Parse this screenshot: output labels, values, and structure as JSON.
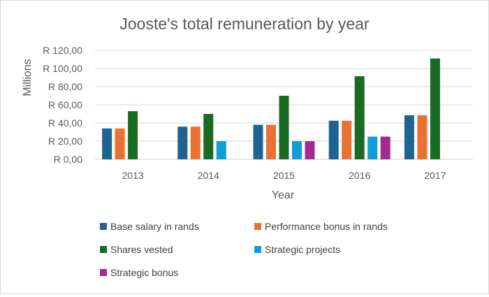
{
  "chart_data": {
    "type": "bar",
    "title": "Jooste's total remuneration by year",
    "xlabel": "Year",
    "ylabel": "Millions",
    "categories": [
      "2013",
      "2014",
      "2015",
      "2016",
      "2017"
    ],
    "ylim": [
      0,
      120
    ],
    "yticks": [
      0,
      20,
      40,
      60,
      80,
      100,
      120
    ],
    "ytick_labels": [
      "R 0,00",
      "R 20,00",
      "R 40,00",
      "R 60,00",
      "R 80,00",
      "R 100,00",
      "R 120,00"
    ],
    "grid": true,
    "legend_position": "bottom",
    "series": [
      {
        "name": "Base salary in rands",
        "color": "#1f6391",
        "values": [
          34,
          36,
          38,
          42.5,
          48.5
        ]
      },
      {
        "name": "Performance bonus in rands",
        "color": "#e97132",
        "values": [
          34,
          36,
          38,
          42.5,
          48.5
        ]
      },
      {
        "name": "Shares vested",
        "color": "#196b24",
        "values": [
          53,
          50,
          70,
          91.5,
          111
        ]
      },
      {
        "name": "Strategic projects",
        "color": "#0f9ed5",
        "values": [
          null,
          20,
          20,
          25,
          null
        ]
      },
      {
        "name": "Strategic bonus",
        "color": "#a02b93",
        "values": [
          null,
          null,
          20,
          25,
          null
        ]
      }
    ]
  }
}
